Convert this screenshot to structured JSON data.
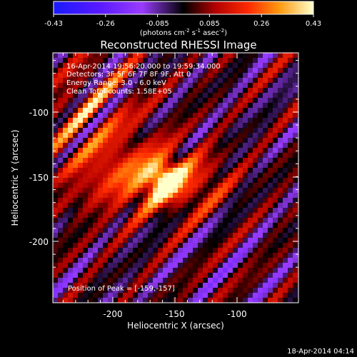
{
  "colorbar": {
    "tick_labels": [
      "-0.43",
      "-0.26",
      "-0.085",
      "0.085",
      "0.26",
      "0.43"
    ],
    "units_main": "(photons cm",
    "units_exp1": "-2",
    "units_mid": " s",
    "units_exp2": "-1",
    "units_mid2": " asec",
    "units_exp3": "-2",
    "units_end": ")",
    "stops": [
      {
        "offset": 0.0,
        "color": "#1a1aff"
      },
      {
        "offset": 0.18,
        "color": "#5a1aff"
      },
      {
        "offset": 0.34,
        "color": "#9a3cff"
      },
      {
        "offset": 0.5,
        "color": "#000000"
      },
      {
        "offset": 0.62,
        "color": "#b00000"
      },
      {
        "offset": 0.75,
        "color": "#ff2a00"
      },
      {
        "offset": 0.87,
        "color": "#ff9a10"
      },
      {
        "offset": 1.0,
        "color": "#ffffcc"
      }
    ]
  },
  "plot": {
    "title": "Reconstructed RHESSI Image",
    "annotations": [
      "16-Apr-2014 19:56:20.000 to 19:59:34.000",
      "Detectors: 3F 5F 6F 7F 8F 9F, Att 0",
      "Energy Range: 3.0 - 6.0 keV",
      "Clean     Total counts: 1.58E+05"
    ],
    "peak_text": "Position of Peak = [-159,-157]",
    "xlabel": "Heliocentric X (arcsec)",
    "ylabel": "Heliocentric Y (arcsec)",
    "x_ticks": [
      "-200",
      "-150",
      "-100"
    ],
    "y_ticks": [
      "-100",
      "-150",
      "-200"
    ],
    "timestamp": "18-Apr-2014 04:14"
  },
  "chart_data": {
    "type": "heatmap",
    "title": "Reconstructed RHESSI Image",
    "xlabel": "Heliocentric X (arcsec)",
    "ylabel": "Heliocentric Y (arcsec)",
    "xlim": [
      -245,
      -57
    ],
    "ylim": [
      -251,
      -59
    ],
    "zlim": [
      -0.43,
      0.43
    ],
    "peak": [
      -159,
      -157
    ],
    "peak_value": 0.43
  }
}
